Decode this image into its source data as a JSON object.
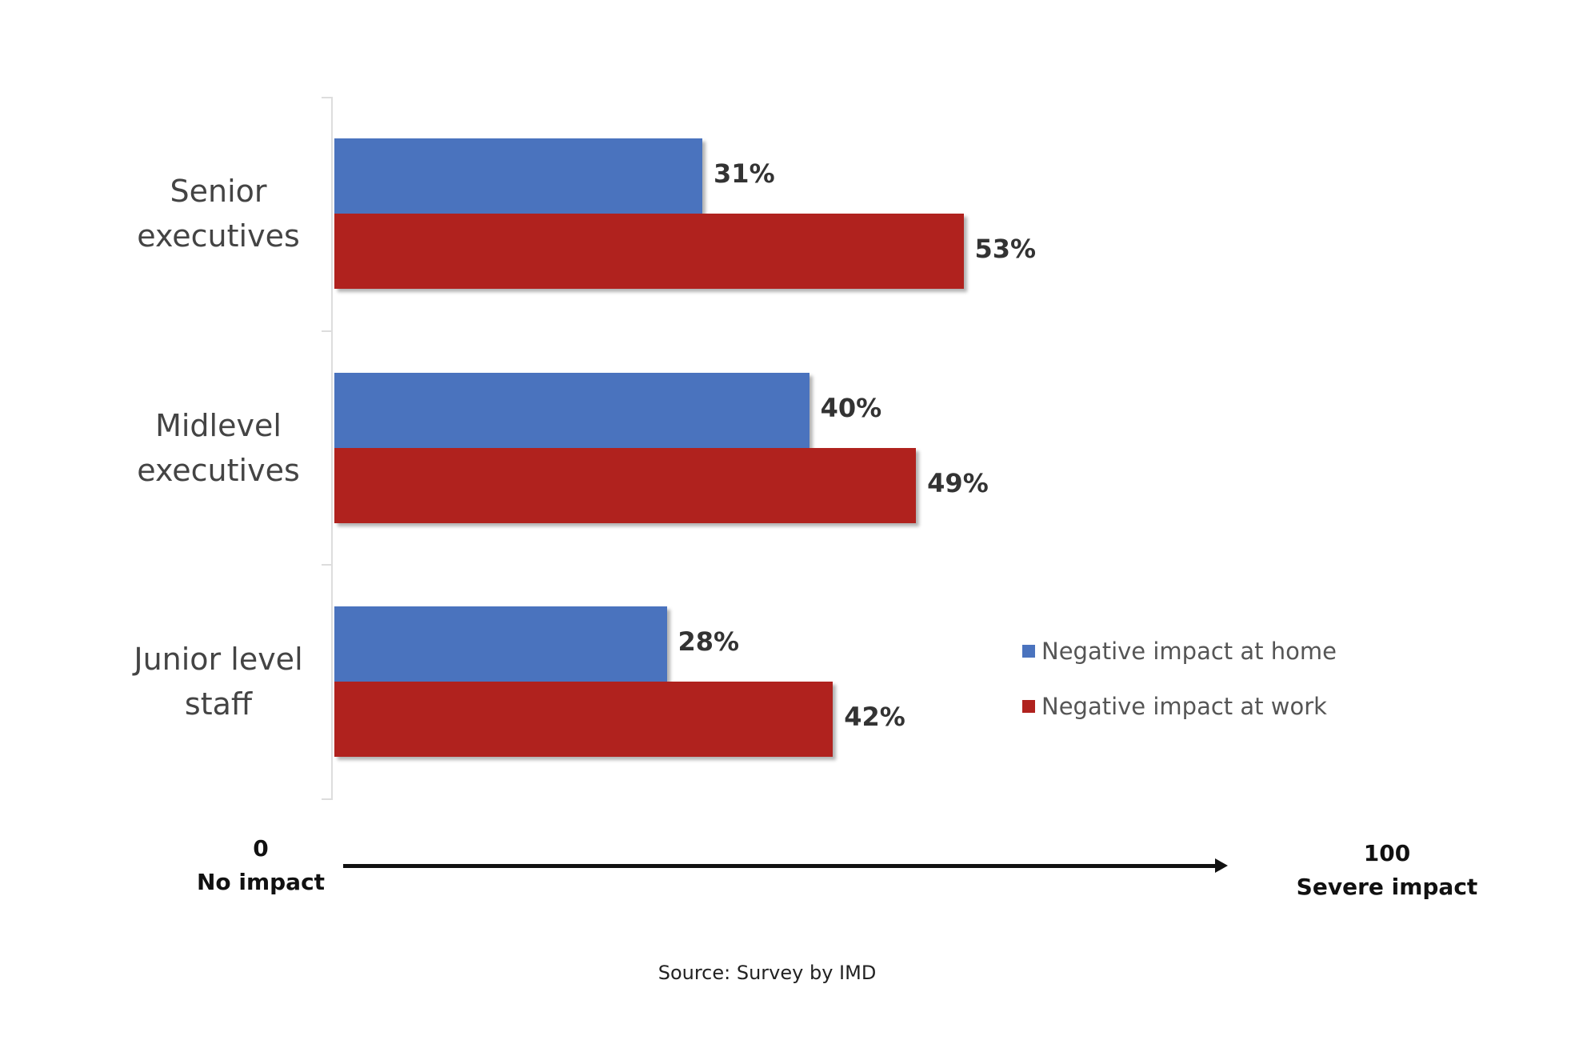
{
  "chart_data": {
    "type": "bar",
    "orientation": "horizontal",
    "categories": [
      "Senior executives",
      "Midlevel executives",
      "Junior level staff"
    ],
    "category_lines": [
      [
        "Senior",
        "executives"
      ],
      [
        "Midlevel",
        "executives"
      ],
      [
        "Junior level",
        "staff"
      ]
    ],
    "series": [
      {
        "name": "Negative impact at home",
        "color": "#4a73be",
        "values": [
          31,
          40,
          28
        ],
        "labels": [
          "31%",
          "40%",
          "28%"
        ]
      },
      {
        "name": "Negative impact at work",
        "color": "#b0221e",
        "values": [
          53,
          49,
          42
        ],
        "labels": [
          "53%",
          "49%",
          "42%"
        ]
      }
    ],
    "xlim": [
      0,
      100
    ],
    "x_min_label": {
      "value": "0",
      "text": "No impact"
    },
    "x_max_label": {
      "value": "100",
      "text": "Severe impact"
    },
    "legend_position": "right",
    "source": "Source: Survey by IMD"
  }
}
